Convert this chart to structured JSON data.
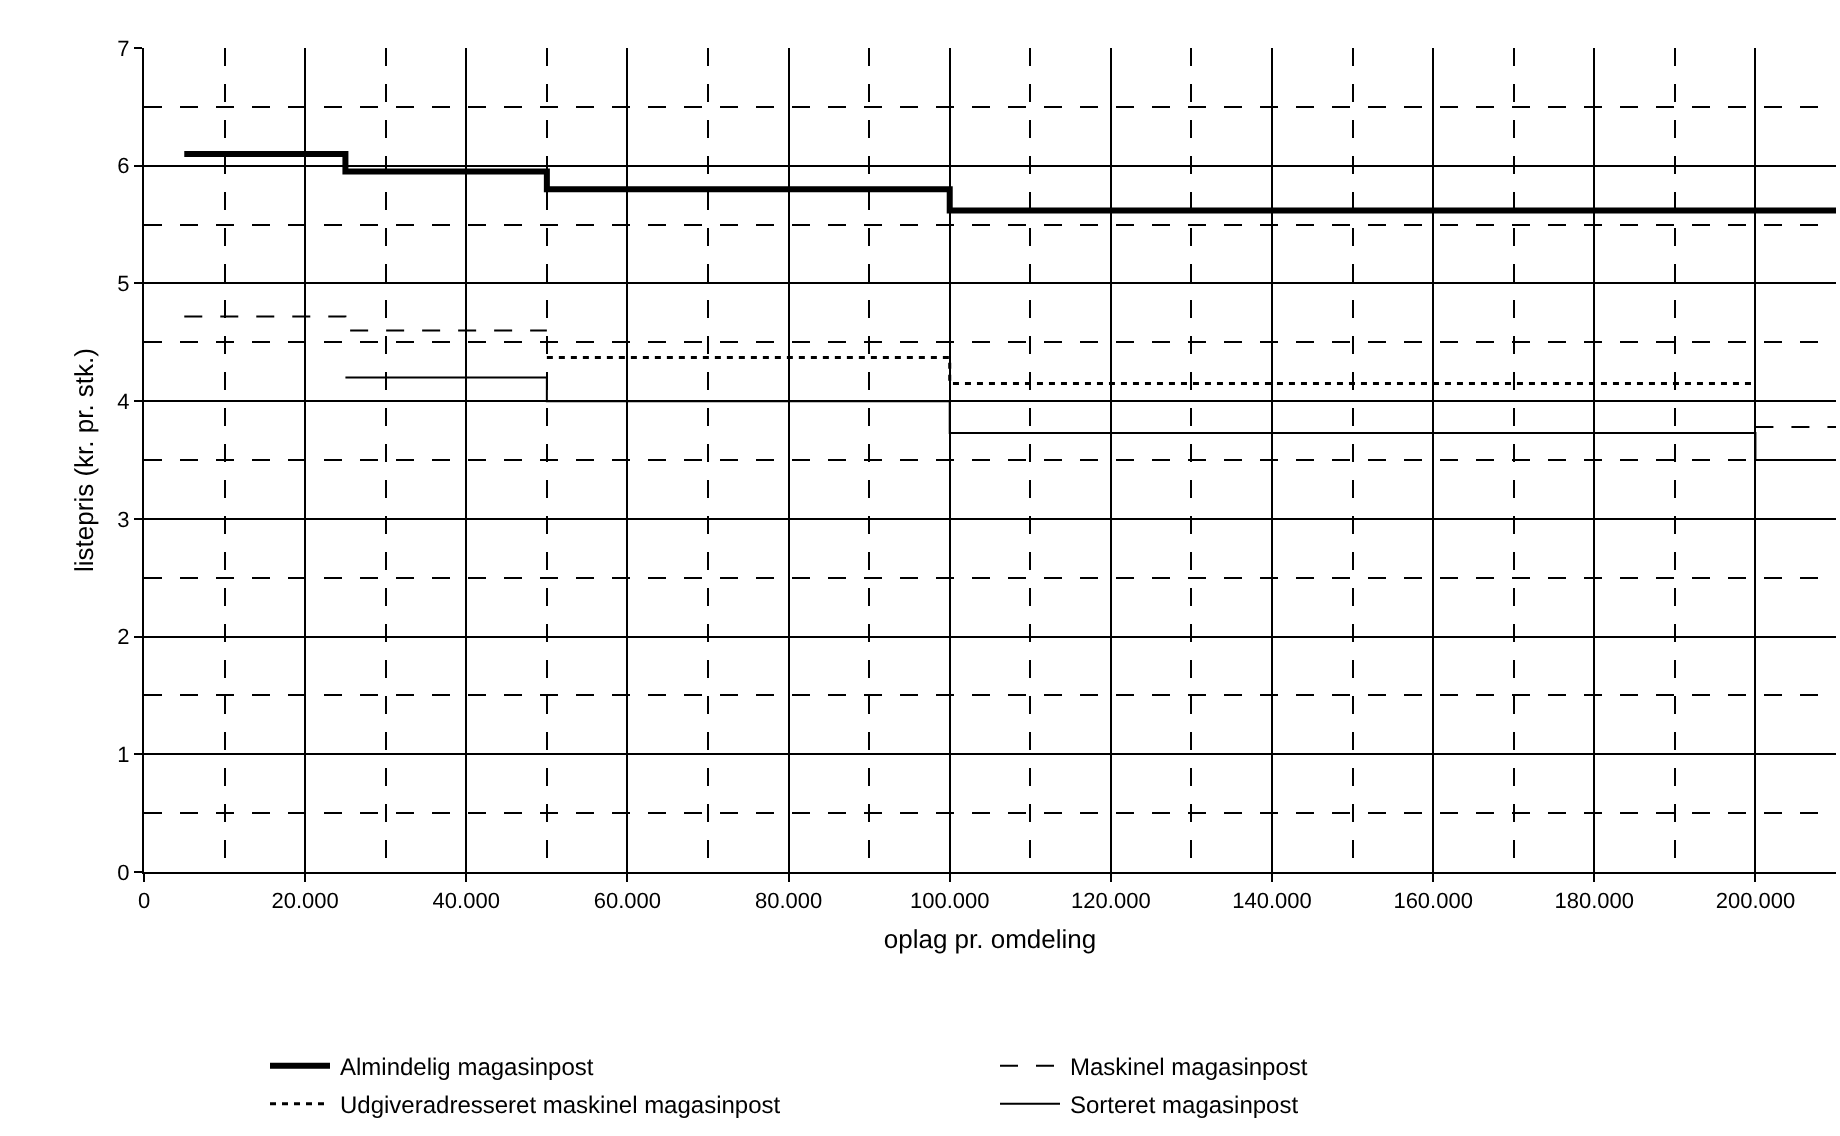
{
  "chart_data": {
    "type": "step",
    "xlabel": "oplag pr. omdeling",
    "ylabel": "listepris (kr. pr. stk.)",
    "xlim": [
      0,
      210000
    ],
    "xticks": [
      0,
      {
        "value": 20000,
        "label": "20.000"
      },
      {
        "value": 40000,
        "label": "40.000"
      },
      {
        "value": 60000,
        "label": "60.000"
      },
      {
        "value": 80000,
        "label": "80.000"
      },
      {
        "value": 100000,
        "label": "100.000"
      },
      {
        "value": 120000,
        "label": "120.000"
      },
      {
        "value": 140000,
        "label": "140.000"
      },
      {
        "value": 160000,
        "label": "160.000"
      },
      {
        "value": 180000,
        "label": "180.000"
      },
      {
        "value": 200000,
        "label": "200.000"
      }
    ],
    "ylim": [
      0,
      7
    ],
    "yticks": [
      0,
      1,
      2,
      3,
      4,
      5,
      6,
      7
    ],
    "grid": true,
    "legend": "bottom",
    "series": [
      {
        "name": "Almindelig magasinpost",
        "color": "#000000",
        "line_style": "solid",
        "x": [
          5000,
          25000,
          50000,
          100000,
          210000
        ],
        "values": [
          6.1,
          5.95,
          5.8,
          5.62,
          5.62
        ]
      },
      {
        "name": "Maskinel magasinpost",
        "color": "#000000",
        "line_style": "dashed",
        "x": [
          5000,
          25000,
          50000,
          100000,
          200000,
          210000
        ],
        "values": [
          4.72,
          4.6,
          4.6,
          null,
          3.78,
          3.78
        ]
      },
      {
        "name": "Udgiveradresseret maskinel magasinpost",
        "color": "#000000",
        "line_style": "dotted",
        "x": [
          50000,
          100000,
          200000
        ],
        "values": [
          4.37,
          4.15,
          4.15
        ]
      },
      {
        "name": "Sorteret magasinpost",
        "color": "#000000",
        "line_style": "solid",
        "x": [
          25000,
          50000,
          100000,
          200000,
          210000
        ],
        "values": [
          4.2,
          4.0,
          3.73,
          3.5,
          3.5
        ]
      }
    ]
  }
}
